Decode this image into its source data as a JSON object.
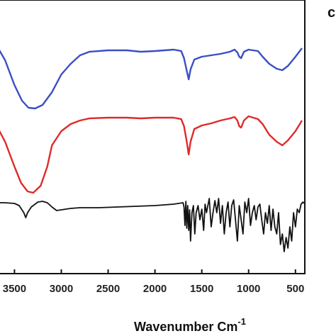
{
  "panel_label": "c",
  "chart_data": {
    "type": "line",
    "title": "",
    "xlabel": "Wavenumber Cm",
    "xlabel_superscript": "-1",
    "ylabel": "",
    "x_reversed": true,
    "xlim": [
      3700,
      400
    ],
    "x_ticks": [
      3500,
      3000,
      2500,
      2000,
      1500,
      1000,
      500
    ],
    "grid": false,
    "legend": "none",
    "series": [
      {
        "color": "#3a4fc4",
        "points": [
          [
            3700,
            62
          ],
          [
            3600,
            85
          ],
          [
            3500,
            120
          ],
          [
            3420,
            142
          ],
          [
            3350,
            152
          ],
          [
            3280,
            153
          ],
          [
            3200,
            148
          ],
          [
            3100,
            130
          ],
          [
            3000,
            105
          ],
          [
            2900,
            90
          ],
          [
            2800,
            78
          ],
          [
            2700,
            73
          ],
          [
            2500,
            71
          ],
          [
            2300,
            71
          ],
          [
            2150,
            73
          ],
          [
            2000,
            72
          ],
          [
            1800,
            70
          ],
          [
            1720,
            72
          ],
          [
            1690,
            82
          ],
          [
            1660,
            100
          ],
          [
            1640,
            112
          ],
          [
            1620,
            98
          ],
          [
            1580,
            84
          ],
          [
            1500,
            80
          ],
          [
            1400,
            78
          ],
          [
            1300,
            76
          ],
          [
            1200,
            73
          ],
          [
            1150,
            70
          ],
          [
            1120,
            74
          ],
          [
            1100,
            80
          ],
          [
            1080,
            82
          ],
          [
            1050,
            73
          ],
          [
            1000,
            70
          ],
          [
            900,
            72
          ],
          [
            850,
            80
          ],
          [
            780,
            90
          ],
          [
            700,
            97
          ],
          [
            640,
            99
          ],
          [
            580,
            93
          ],
          [
            500,
            80
          ],
          [
            430,
            68
          ]
        ]
      },
      {
        "color": "#e02a2a",
        "points": [
          [
            3700,
            175
          ],
          [
            3600,
            200
          ],
          [
            3500,
            235
          ],
          [
            3430,
            258
          ],
          [
            3360,
            270
          ],
          [
            3300,
            272
          ],
          [
            3220,
            262
          ],
          [
            3150,
            235
          ],
          [
            3100,
            205
          ],
          [
            3000,
            185
          ],
          [
            2900,
            175
          ],
          [
            2800,
            170
          ],
          [
            2700,
            167
          ],
          [
            2500,
            166
          ],
          [
            2300,
            166
          ],
          [
            2150,
            167
          ],
          [
            2000,
            166
          ],
          [
            1800,
            166
          ],
          [
            1720,
            168
          ],
          [
            1690,
            178
          ],
          [
            1660,
            200
          ],
          [
            1640,
            218
          ],
          [
            1620,
            200
          ],
          [
            1580,
            182
          ],
          [
            1500,
            177
          ],
          [
            1400,
            174
          ],
          [
            1300,
            170
          ],
          [
            1200,
            167
          ],
          [
            1150,
            165
          ],
          [
            1120,
            170
          ],
          [
            1100,
            178
          ],
          [
            1080,
            180
          ],
          [
            1050,
            170
          ],
          [
            1000,
            164
          ],
          [
            900,
            168
          ],
          [
            850,
            175
          ],
          [
            780,
            190
          ],
          [
            700,
            200
          ],
          [
            640,
            205
          ],
          [
            580,
            198
          ],
          [
            500,
            185
          ],
          [
            430,
            170
          ]
        ]
      },
      {
        "color": "#111111",
        "points": [
          [
            3700,
            286
          ],
          [
            3600,
            286
          ],
          [
            3500,
            287
          ],
          [
            3450,
            290
          ],
          [
            3400,
            300
          ],
          [
            3380,
            307
          ],
          [
            3360,
            300
          ],
          [
            3320,
            292
          ],
          [
            3250,
            285
          ],
          [
            3200,
            284
          ],
          [
            3150,
            286
          ],
          [
            3100,
            292
          ],
          [
            3050,
            297
          ],
          [
            3000,
            296
          ],
          [
            2900,
            294
          ],
          [
            2800,
            293
          ],
          [
            2600,
            293
          ],
          [
            2400,
            292
          ],
          [
            2200,
            291
          ],
          [
            2000,
            290
          ],
          [
            1900,
            289
          ],
          [
            1800,
            288
          ],
          [
            1750,
            287
          ],
          [
            1700,
            286
          ],
          [
            1690,
            292
          ],
          [
            1680,
            318
          ],
          [
            1670,
            284
          ],
          [
            1660,
            322
          ],
          [
            1650,
            290
          ],
          [
            1640,
            325
          ],
          [
            1630,
            296
          ],
          [
            1620,
            340
          ],
          [
            1605,
            300
          ],
          [
            1590,
            290
          ],
          [
            1575,
            330
          ],
          [
            1560,
            300
          ],
          [
            1540,
            290
          ],
          [
            1520,
            310
          ],
          [
            1500,
            295
          ],
          [
            1480,
            325
          ],
          [
            1465,
            288
          ],
          [
            1450,
            300
          ],
          [
            1420,
            280
          ],
          [
            1400,
            320
          ],
          [
            1380,
            300
          ],
          [
            1360,
            283
          ],
          [
            1340,
            300
          ],
          [
            1320,
            280
          ],
          [
            1300,
            315
          ],
          [
            1280,
            290
          ],
          [
            1260,
            330
          ],
          [
            1240,
            300
          ],
          [
            1220,
            285
          ],
          [
            1200,
            320
          ],
          [
            1180,
            290
          ],
          [
            1160,
            282
          ],
          [
            1140,
            310
          ],
          [
            1120,
            340
          ],
          [
            1100,
            290
          ],
          [
            1080,
            310
          ],
          [
            1060,
            330
          ],
          [
            1040,
            285
          ],
          [
            1020,
            300
          ],
          [
            1000,
            280
          ],
          [
            980,
            318
          ],
          [
            960,
            300
          ],
          [
            940,
            290
          ],
          [
            920,
            310
          ],
          [
            900,
            292
          ],
          [
            880,
            288
          ],
          [
            860,
            310
          ],
          [
            840,
            330
          ],
          [
            820,
            300
          ],
          [
            800,
            315
          ],
          [
            780,
            290
          ],
          [
            760,
            325
          ],
          [
            740,
            295
          ],
          [
            720,
            320
          ],
          [
            700,
            330
          ],
          [
            680,
            300
          ],
          [
            660,
            345
          ],
          [
            640,
            330
          ],
          [
            620,
            355
          ],
          [
            600,
            335
          ],
          [
            580,
            350
          ],
          [
            560,
            320
          ],
          [
            540,
            340
          ],
          [
            520,
            300
          ],
          [
            500,
            320
          ],
          [
            480,
            295
          ],
          [
            460,
            300
          ],
          [
            440,
            288
          ],
          [
            420,
            285
          ],
          [
            410,
            287
          ]
        ]
      }
    ]
  }
}
